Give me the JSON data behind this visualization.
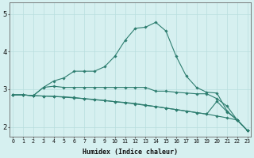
{
  "xlabel": "Humidex (Indice chaleur)",
  "bg_color": "#d6f0f0",
  "line_color": "#2d7d6f",
  "grid_color": "#b8dede",
  "xlim": [
    -0.3,
    23.3
  ],
  "ylim": [
    1.75,
    5.3
  ],
  "yticks": [
    2,
    3,
    4,
    5
  ],
  "xticks": [
    0,
    1,
    2,
    3,
    4,
    5,
    6,
    7,
    8,
    9,
    10,
    11,
    12,
    13,
    14,
    15,
    16,
    17,
    18,
    19,
    20,
    21,
    22,
    23
  ],
  "series": [
    [
      2.85,
      2.85,
      2.83,
      3.05,
      3.22,
      3.3,
      3.48,
      3.48,
      3.48,
      3.6,
      3.88,
      4.3,
      4.62,
      4.65,
      4.78,
      4.55,
      3.88,
      3.35,
      3.05,
      2.92,
      2.9,
      2.42,
      2.18,
      1.9
    ],
    [
      2.85,
      2.85,
      2.83,
      3.05,
      3.08,
      3.05,
      3.05,
      3.05,
      3.05,
      3.05,
      3.05,
      3.05,
      3.05,
      3.05,
      2.95,
      2.95,
      2.92,
      2.9,
      2.88,
      2.88,
      2.75,
      2.55,
      2.18,
      1.9
    ],
    [
      2.85,
      2.85,
      2.83,
      2.82,
      2.81,
      2.8,
      2.78,
      2.75,
      2.72,
      2.7,
      2.67,
      2.65,
      2.62,
      2.58,
      2.54,
      2.5,
      2.46,
      2.42,
      2.38,
      2.34,
      2.68,
      2.4,
      2.18,
      1.9
    ],
    [
      2.85,
      2.85,
      2.83,
      2.82,
      2.81,
      2.79,
      2.77,
      2.75,
      2.73,
      2.7,
      2.67,
      2.64,
      2.61,
      2.57,
      2.54,
      2.5,
      2.46,
      2.42,
      2.38,
      2.34,
      2.29,
      2.24,
      2.18,
      1.9
    ]
  ]
}
